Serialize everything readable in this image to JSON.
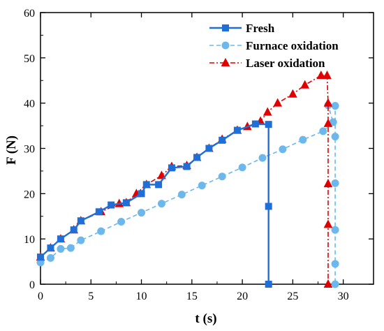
{
  "chart_data": {
    "type": "line",
    "title": "",
    "xlabel": "t (s)",
    "ylabel": "F (N)",
    "xlim": [
      0,
      33
    ],
    "ylim": [
      0,
      60
    ],
    "xticks": [
      0,
      5,
      10,
      15,
      20,
      25,
      30
    ],
    "yticks": [
      0,
      10,
      20,
      30,
      40,
      50,
      60
    ],
    "grid": false,
    "legend_position": "top-right",
    "series": [
      {
        "name": "Fresh",
        "color": "#1f6fd6",
        "marker": "square",
        "line_style": "solid",
        "points": [
          [
            0,
            6.0
          ],
          [
            1.0,
            8.0
          ],
          [
            2.0,
            10.0
          ],
          [
            3.3,
            12.0
          ],
          [
            4.0,
            14.0
          ],
          [
            5.8,
            16.0
          ],
          [
            7.0,
            17.5
          ],
          [
            8.5,
            18.0
          ],
          [
            10.0,
            20.0
          ],
          [
            10.5,
            22.0
          ],
          [
            11.7,
            22.0
          ],
          [
            13.0,
            25.7
          ],
          [
            14.5,
            26.0
          ],
          [
            15.5,
            28.0
          ],
          [
            16.7,
            30.0
          ],
          [
            18.0,
            31.8
          ],
          [
            19.5,
            34.0
          ],
          [
            21.3,
            35.4
          ],
          [
            22.6,
            35.3
          ],
          [
            22.6,
            17.2
          ],
          [
            22.6,
            0
          ]
        ]
      },
      {
        "name": "Furnace oxidation",
        "color": "#6cb8ec",
        "marker": "circle",
        "line_style": "dashed",
        "points": [
          [
            0,
            4.8
          ],
          [
            1.0,
            5.8
          ],
          [
            2.0,
            7.8
          ],
          [
            3.0,
            8.0
          ],
          [
            4.0,
            9.7
          ],
          [
            6.0,
            11.7
          ],
          [
            8.0,
            13.8
          ],
          [
            10.0,
            15.8
          ],
          [
            12.0,
            17.8
          ],
          [
            14.0,
            19.8
          ],
          [
            16.0,
            21.8
          ],
          [
            18.0,
            23.8
          ],
          [
            20.0,
            25.8
          ],
          [
            22.0,
            27.9
          ],
          [
            24.0,
            29.8
          ],
          [
            26.0,
            31.9
          ],
          [
            28.0,
            33.8
          ],
          [
            29.0,
            35.8
          ],
          [
            28.5,
            39.5
          ],
          [
            29.2,
            39.4
          ],
          [
            29.2,
            32.6
          ],
          [
            29.2,
            22.3
          ],
          [
            29.2,
            12.0
          ],
          [
            29.2,
            4.5
          ],
          [
            29.2,
            0
          ]
        ]
      },
      {
        "name": "Laser oxidation",
        "color": "#e00000",
        "marker": "triangle",
        "line_style": "dash-dot",
        "points": [
          [
            0,
            6.0
          ],
          [
            1.0,
            8.0
          ],
          [
            2.0,
            10.0
          ],
          [
            3.3,
            12.0
          ],
          [
            4.0,
            14.0
          ],
          [
            6.0,
            16.0
          ],
          [
            7.8,
            17.8
          ],
          [
            8.5,
            18.0
          ],
          [
            9.5,
            20.0
          ],
          [
            10.5,
            22.0
          ],
          [
            12.0,
            24.0
          ],
          [
            13.0,
            26.0
          ],
          [
            14.5,
            26.2
          ],
          [
            15.5,
            28.0
          ],
          [
            16.7,
            30.0
          ],
          [
            18.0,
            32.0
          ],
          [
            19.5,
            34.0
          ],
          [
            20.5,
            34.8
          ],
          [
            21.8,
            36.0
          ],
          [
            22.5,
            38.0
          ],
          [
            23.5,
            40.0
          ],
          [
            25.0,
            42.0
          ],
          [
            26.2,
            44.0
          ],
          [
            27.8,
            46.1
          ],
          [
            28.4,
            46.1
          ],
          [
            28.5,
            40.0
          ],
          [
            28.5,
            35.5
          ],
          [
            28.5,
            22.2
          ],
          [
            28.5,
            13.2
          ],
          [
            28.5,
            0
          ]
        ]
      }
    ]
  }
}
